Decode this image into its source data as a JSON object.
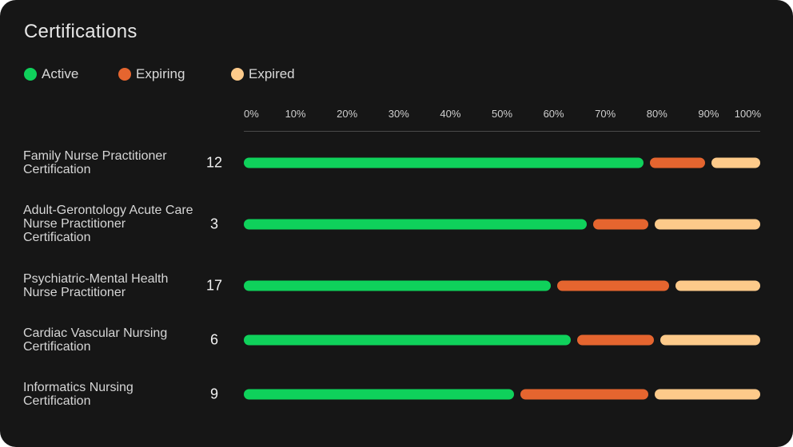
{
  "title": "Certifications",
  "legend": [
    {
      "label": "Active",
      "color": "#0fd15b"
    },
    {
      "label": "Expiring",
      "color": "#e5652f"
    },
    {
      "label": "Expired",
      "color": "#fdca8a"
    }
  ],
  "chart_data": {
    "type": "bar",
    "orientation": "horizontal",
    "stacked": true,
    "title": "Certifications",
    "xlim": [
      0,
      100
    ],
    "x_ticks": [
      "0%",
      "10%",
      "20%",
      "30%",
      "40%",
      "50%",
      "60%",
      "70%",
      "80%",
      "90%",
      "100%"
    ],
    "categories": [
      "Family Nurse Practitioner Certification",
      "Adult-Gerontology Acute Care Nurse Practitioner Certification",
      "Psychiatric-Mental Health Nurse Practitioner",
      "Cardiac Vascular Nursing Certification",
      "Informatics Nursing Certification"
    ],
    "counts": [
      12,
      3,
      17,
      6,
      9
    ],
    "series": [
      {
        "name": "Active",
        "color": "#0fd15b",
        "values": [
          78,
          67,
          60,
          64,
          53
        ]
      },
      {
        "name": "Expiring",
        "color": "#e5652f",
        "values": [
          12,
          12,
          23,
          16,
          26
        ]
      },
      {
        "name": "Expired",
        "color": "#fdca8a",
        "values": [
          10,
          21,
          17,
          20,
          21
        ]
      }
    ],
    "grid": false,
    "legend_position": "top-left"
  }
}
